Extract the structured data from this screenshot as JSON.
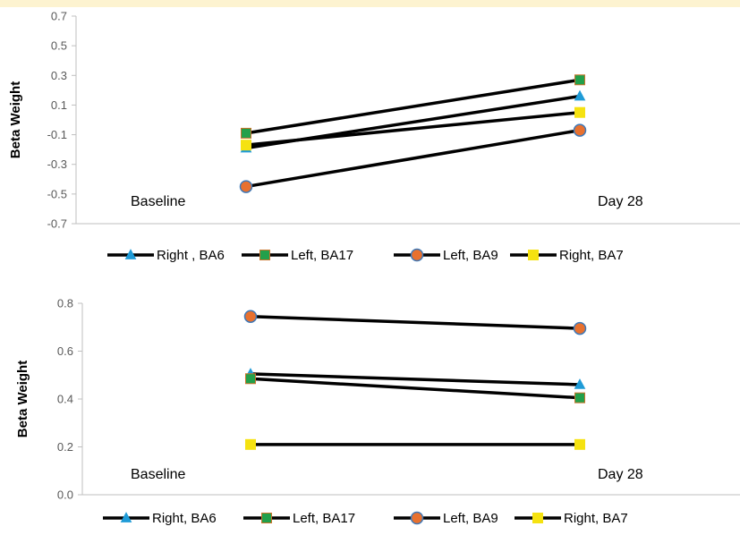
{
  "colors": {
    "top_band": "#fdf3d0",
    "line": "#000000",
    "axis": "#bfbfbf",
    "right_ba6": "#1f9bd7",
    "left_ba17": "#22a04b",
    "left_ba17_edge": "#c9742b",
    "left_ba9": "#e8712f",
    "left_ba9_edge": "#3d78b8",
    "right_ba7": "#f5e211"
  },
  "chart_data": [
    {
      "type": "line",
      "categories": [
        "Baseline",
        "Day 28"
      ],
      "ylabel": "Beta Weight",
      "ylim": [
        -0.7,
        0.7
      ],
      "yticks": [
        "0.7",
        "0.5",
        "0.3",
        "0.1",
        "-0.1",
        "-0.3",
        "-0.5",
        "-0.7"
      ],
      "annotations": [
        "Baseline",
        "Day 28"
      ],
      "series": [
        {
          "name": "Right , BA6",
          "marker": "triangle",
          "values": [
            -0.19,
            0.16
          ]
        },
        {
          "name": "Left, BA17",
          "marker": "square",
          "values": [
            -0.09,
            0.27
          ]
        },
        {
          "name": "Left, BA9",
          "marker": "circle",
          "values": [
            -0.45,
            -0.07
          ]
        },
        {
          "name": "Right, BA7",
          "marker": "square",
          "values": [
            -0.17,
            0.05
          ]
        }
      ]
    },
    {
      "type": "line",
      "categories": [
        "Baseline",
        "Day 28"
      ],
      "ylabel": "Beta Weight",
      "ylim": [
        0.0,
        0.8
      ],
      "yticks": [
        "0.8",
        "0.6",
        "0.4",
        "0.2",
        "0.0"
      ],
      "annotations": [
        "Baseline",
        "Day 28"
      ],
      "series": [
        {
          "name": "Right, BA6",
          "marker": "triangle",
          "values": [
            0.505,
            0.46
          ]
        },
        {
          "name": "Left, BA17",
          "marker": "square",
          "values": [
            0.485,
            0.405
          ]
        },
        {
          "name": "Left, BA9",
          "marker": "circle",
          "values": [
            0.745,
            0.695
          ]
        },
        {
          "name": "Right, BA7",
          "marker": "square",
          "values": [
            0.21,
            0.21
          ]
        }
      ]
    }
  ]
}
